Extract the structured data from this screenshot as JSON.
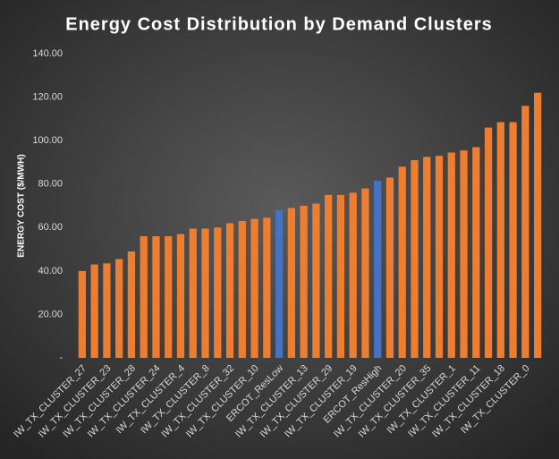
{
  "chart_data": {
    "type": "bar",
    "title": "Energy Cost Distribution  by Demand Clusters",
    "y_label": "ENERGY COST ($/MWH)",
    "categories": [
      "IW_TX_CLUSTER_27",
      null,
      "IW_TX_CLUSTER_23",
      null,
      "IW_TX_CLUSTER_28",
      null,
      "IW_TX_CLUSTER_24",
      null,
      "IW_TX_CLUSTER_4",
      null,
      "IW_TX_CLUSTER_8",
      null,
      "IW_TX_CLUSTER_32",
      null,
      "IW_TX_CLUSTER_10",
      null,
      "ERCOT_ResLow",
      null,
      "IW_TX_CLUSTER_13",
      null,
      "IW_TX_CLUSTER_29",
      null,
      "IW_TX_CLUSTER_19",
      null,
      "ERCOT_ResHigh",
      null,
      "IW_TX_CLUSTER_20",
      null,
      "IW_TX_CLUSTER_35",
      null,
      "IW_TX_CLUSTER_1",
      null,
      "IW_TX_CLUSTER_11",
      null,
      "IW_TX_CLUSTER_18",
      null,
      "IW_TX_CLUSTER_0",
      null
    ],
    "values": [
      40,
      43,
      43.5,
      45.5,
      49,
      56,
      56,
      56,
      57,
      59.5,
      59.5,
      60,
      62,
      63,
      64,
      64.5,
      68,
      69,
      70,
      71,
      75,
      75,
      76,
      78,
      81.5,
      83,
      88,
      91,
      92.5,
      93,
      94.5,
      95.5,
      97,
      106,
      108.5,
      108.5,
      116,
      122
    ],
    "colors": [
      "#ed7d31",
      "#ed7d31",
      "#ed7d31",
      "#ed7d31",
      "#ed7d31",
      "#ed7d31",
      "#ed7d31",
      "#ed7d31",
      "#ed7d31",
      "#ed7d31",
      "#ed7d31",
      "#ed7d31",
      "#ed7d31",
      "#ed7d31",
      "#ed7d31",
      "#ed7d31",
      "#4472c4",
      "#ed7d31",
      "#ed7d31",
      "#ed7d31",
      "#ed7d31",
      "#ed7d31",
      "#ed7d31",
      "#ed7d31",
      "#4472c4",
      "#ed7d31",
      "#ed7d31",
      "#ed7d31",
      "#ed7d31",
      "#ed7d31",
      "#ed7d31",
      "#ed7d31",
      "#ed7d31",
      "#ed7d31",
      "#ed7d31",
      "#ed7d31",
      "#ed7d31",
      "#ed7d31"
    ],
    "ylim": [
      0,
      140
    ],
    "yticks": [
      {
        "value": 0,
        "label": "-"
      },
      {
        "value": 20,
        "label": "20.00"
      },
      {
        "value": 40,
        "label": "40.00"
      },
      {
        "value": 60,
        "label": "60.00"
      },
      {
        "value": 80,
        "label": "80.00"
      },
      {
        "value": 100,
        "label": "100.00"
      },
      {
        "value": 120,
        "label": "120.00"
      },
      {
        "value": 140,
        "label": "140.00"
      }
    ],
    "grid": false
  }
}
